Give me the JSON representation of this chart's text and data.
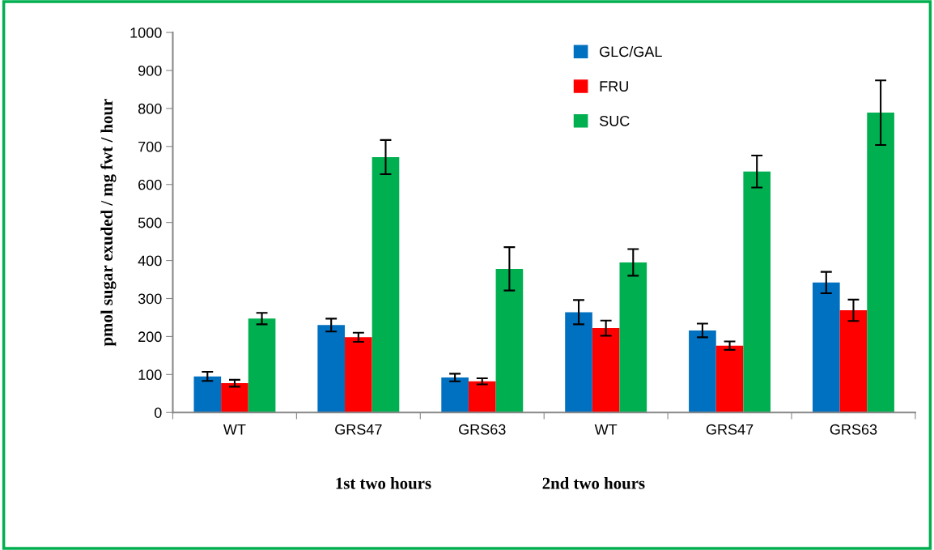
{
  "chart_data": {
    "type": "bar",
    "ylabel": "pmol sugar exuded / mg fwt / hour",
    "categories": [
      "WT",
      "GRS47",
      "GRS63",
      "WT",
      "GRS47",
      "GRS63"
    ],
    "series": [
      {
        "name": "GLC/GAL",
        "color": "#0070c0",
        "values": [
          95,
          230,
          92,
          264,
          216,
          342
        ],
        "errors": [
          12,
          17,
          10,
          32,
          18,
          28
        ]
      },
      {
        "name": "FRU",
        "color": "#ff0000",
        "values": [
          77,
          198,
          82,
          222,
          176,
          269
        ],
        "errors": [
          9,
          12,
          8,
          20,
          11,
          28
        ]
      },
      {
        "name": "SUC",
        "color": "#00b050",
        "values": [
          247,
          672,
          378,
          395,
          634,
          789
        ],
        "errors": [
          15,
          45,
          57,
          35,
          42,
          85
        ]
      }
    ],
    "annotations": [
      "1st two hours",
      "2nd two hours"
    ],
    "ylim": [
      0,
      1000
    ],
    "yticks": [
      0,
      100,
      200,
      300,
      400,
      500,
      600,
      700,
      800,
      900,
      1000
    ],
    "grid": false,
    "legend": "top"
  }
}
